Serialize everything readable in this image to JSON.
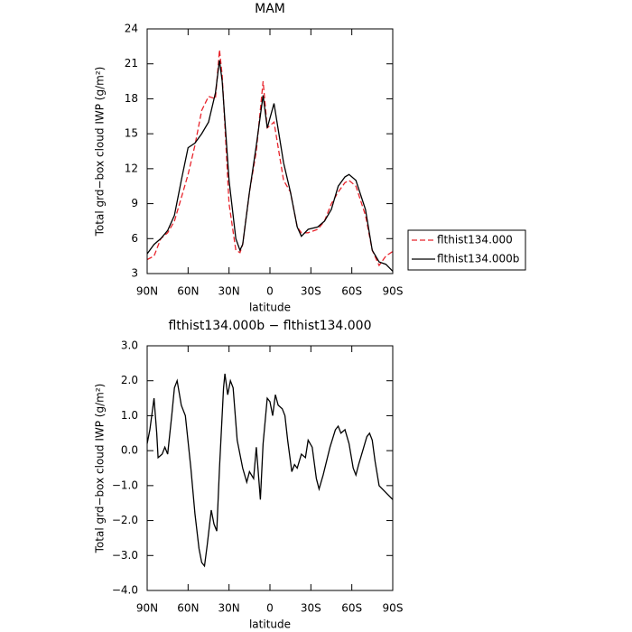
{
  "chart_data": [
    {
      "type": "line",
      "title": "MAM",
      "x_label": "latitude",
      "y_label": "Total grd−box cloud IWP (g/m²)",
      "x": [
        90,
        85,
        80,
        75,
        70,
        65,
        60,
        55,
        50,
        45,
        40,
        37,
        35,
        30,
        25,
        22,
        20,
        15,
        10,
        5,
        2,
        -3,
        -10,
        -15,
        -20,
        -23,
        -28,
        -35,
        -40,
        -45,
        -50,
        -55,
        -58,
        -63,
        -70,
        -75,
        -80,
        -85,
        -90
      ],
      "series": [
        {
          "name": "flthist134.000",
          "color": "#e8242c",
          "style": "dashed",
          "values": [
            4.2,
            4.5,
            6,
            6.5,
            7.5,
            9.5,
            11.5,
            14,
            17,
            18.2,
            18,
            22.2,
            20,
            9,
            5,
            4.8,
            5.5,
            10,
            13.5,
            19.5,
            15.5,
            16,
            11,
            10,
            7,
            6.5,
            6.5,
            6.8,
            7.5,
            9,
            10,
            10.8,
            11,
            10.5,
            8,
            5,
            3.7,
            4.5,
            4.9
          ]
        },
        {
          "name": "flthist134.000b",
          "color": "#000000",
          "style": "solid",
          "values": [
            4.7,
            5.5,
            6,
            6.7,
            8,
            11,
            13.8,
            14.2,
            15,
            16,
            18.5,
            21.3,
            19.5,
            11,
            6,
            5,
            5.5,
            10,
            14,
            18.3,
            15.5,
            17.6,
            12.5,
            10,
            7,
            6.2,
            6.8,
            7,
            7.5,
            8.5,
            10.5,
            11.3,
            11.5,
            11,
            8.5,
            5,
            4,
            3.8,
            3.2
          ]
        }
      ],
      "xlim": [
        90,
        -90
      ],
      "xticks": [
        {
          "value": 90,
          "label": "90N"
        },
        {
          "value": 60,
          "label": "60N"
        },
        {
          "value": 30,
          "label": "30N"
        },
        0,
        {
          "value": -30,
          "label": "30S"
        },
        {
          "value": -60,
          "label": "60S"
        },
        {
          "value": -90,
          "label": "90S"
        }
      ],
      "ylim": [
        3,
        24
      ],
      "yticks": [
        3,
        6,
        9,
        12,
        15,
        18,
        21,
        24
      ],
      "legend": "right"
    },
    {
      "type": "line",
      "title": "flthist134.000b − flthist134.000",
      "x_label": "latitude",
      "y_label": "Total grd−box cloud IWP (g/m²)",
      "x": [
        90,
        88,
        85,
        83,
        82,
        79,
        77,
        75,
        72,
        70,
        68,
        65,
        62,
        58,
        55,
        52,
        50,
        48,
        46,
        43,
        41,
        39,
        37,
        34,
        33,
        31,
        29,
        27,
        24,
        20,
        17,
        15,
        12,
        10,
        7,
        5,
        2,
        0,
        -2,
        -4,
        -6,
        -9,
        -11,
        -13,
        -16,
        -18,
        -20,
        -23,
        -26,
        -28,
        -31,
        -34,
        -36,
        -39,
        -44,
        -48,
        -50,
        -52,
        -55,
        -58,
        -61,
        -63,
        -65,
        -68,
        -71,
        -73,
        -75,
        -77,
        -80,
        -85,
        -90
      ],
      "series": [
        {
          "color": "#000000",
          "style": "solid",
          "values": [
            0.2,
            0.6,
            1.5,
            0.5,
            -0.2,
            -0.1,
            0.1,
            -0.1,
            1.0,
            1.8,
            2.0,
            1.3,
            1.0,
            -0.5,
            -1.8,
            -2.8,
            -3.2,
            -3.3,
            -2.7,
            -1.7,
            -2.1,
            -2.3,
            -0.5,
            1.8,
            2.2,
            1.6,
            2.0,
            1.8,
            0.3,
            -0.5,
            -0.9,
            -0.6,
            -0.8,
            0.1,
            -1.4,
            0.2,
            1.5,
            1.4,
            1.0,
            1.6,
            1.3,
            1.2,
            1.0,
            0.3,
            -0.6,
            -0.4,
            -0.5,
            -0.1,
            -0.2,
            0.3,
            0.1,
            -0.8,
            -1.1,
            -0.7,
            0.1,
            0.6,
            0.7,
            0.5,
            0.6,
            0.2,
            -0.5,
            -0.7,
            -0.4,
            0.0,
            0.4,
            0.5,
            0.3,
            -0.3,
            -1.0,
            -1.2,
            -1.4
          ]
        }
      ],
      "xlim": [
        90,
        -90
      ],
      "xticks": [
        {
          "value": 90,
          "label": "90N"
        },
        {
          "value": 60,
          "label": "60N"
        },
        {
          "value": 30,
          "label": "30N"
        },
        0,
        {
          "value": -30,
          "label": "30S"
        },
        {
          "value": -60,
          "label": "60S"
        },
        {
          "value": -90,
          "label": "90S"
        }
      ],
      "ylim": [
        -4,
        3
      ],
      "yticks": [
        {
          "value": -4,
          "label": "−4.0"
        },
        {
          "value": -3,
          "label": "−3.0"
        },
        {
          "value": -2,
          "label": "−2.0"
        },
        {
          "value": -1,
          "label": "−1.0"
        },
        {
          "value": 0,
          "label": "0.0"
        },
        {
          "value": 1,
          "label": "1.0"
        },
        {
          "value": 2,
          "label": "2.0"
        },
        {
          "value": 3,
          "label": "3.0"
        }
      ]
    }
  ]
}
